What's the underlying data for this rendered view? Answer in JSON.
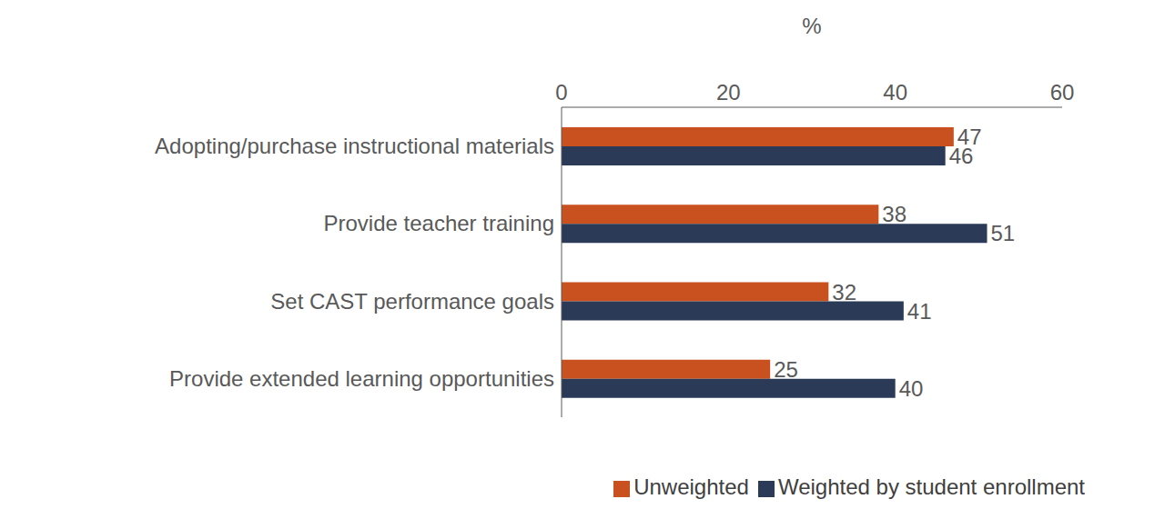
{
  "chart_data": {
    "type": "bar",
    "orientation": "horizontal",
    "xlabel": "%",
    "categories": [
      "Adopting/purchase instructional materials",
      "Provide teacher training",
      "Set CAST performance goals",
      "Provide extended learning opportunities"
    ],
    "series": [
      {
        "name": "Unweighted",
        "color": "#c9511f",
        "values": [
          47,
          38,
          32,
          25
        ]
      },
      {
        "name": "Weighted by student enrollment",
        "color": "#2a3a57",
        "values": [
          46,
          51,
          41,
          40
        ]
      }
    ],
    "xlim": [
      0,
      60
    ],
    "xticks": [
      0,
      20,
      40,
      60
    ],
    "data_labels": true,
    "legend": "bottom right",
    "grid": false
  }
}
